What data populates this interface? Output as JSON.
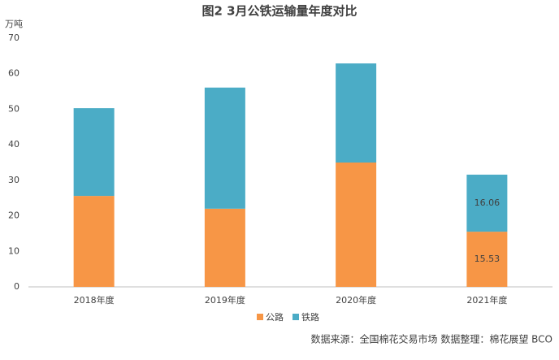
{
  "chart_data": {
    "type": "stacked_bar",
    "title": "图2 3月公铁运输量年度对比",
    "y_label": "万吨",
    "categories": [
      "2018年度",
      "2019年度",
      "2020年度",
      "2021年度"
    ],
    "series": [
      {
        "name": "公路",
        "color": "#f79646",
        "values": [
          25.6,
          22.0,
          35.0,
          15.53
        ],
        "value_labels": [
          null,
          null,
          null,
          "15.53"
        ]
      },
      {
        "name": "铁路",
        "color": "#4bacc6",
        "values": [
          24.7,
          34.1,
          27.9,
          16.06
        ],
        "value_labels": [
          null,
          null,
          null,
          "16.06"
        ]
      }
    ],
    "ylim": [
      0,
      70
    ],
    "yticks": [
      0,
      10,
      20,
      30,
      40,
      50,
      60,
      70
    ],
    "grid": false,
    "legend": "bottom",
    "source": "数据来源：全国棉花交易市场  数据整理：棉花展望 BCO"
  }
}
